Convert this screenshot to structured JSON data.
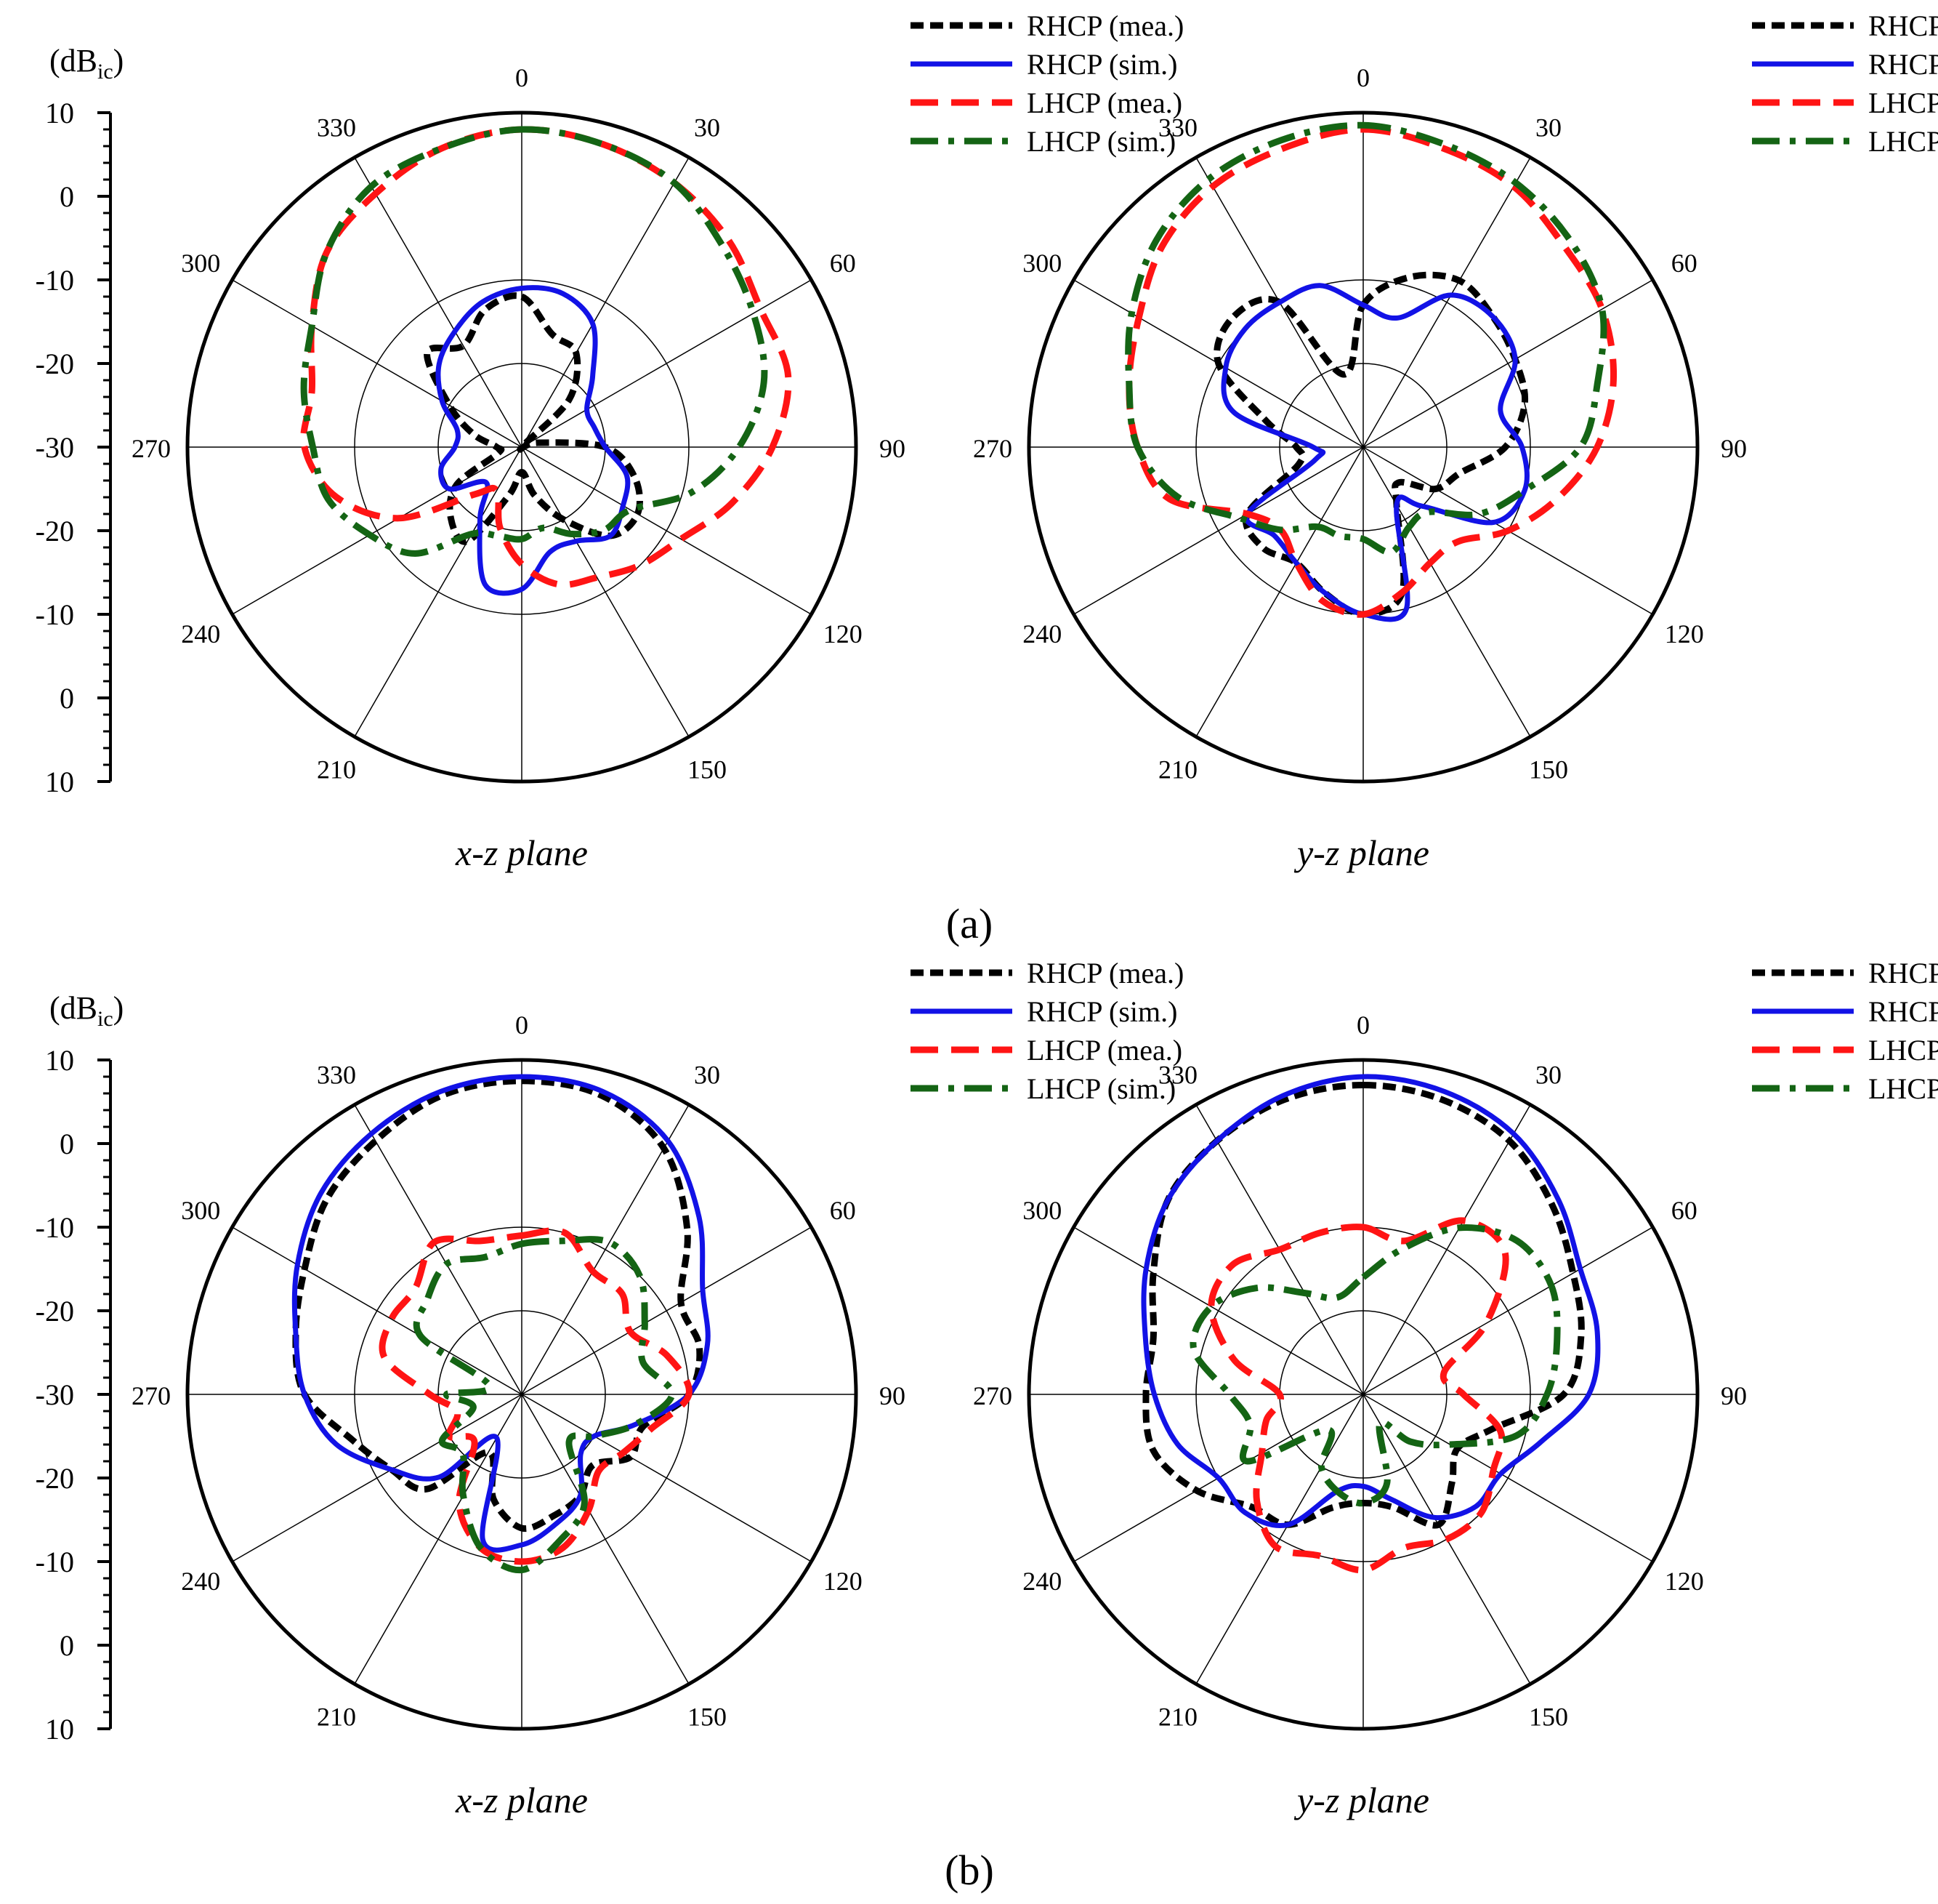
{
  "figure": {
    "subplot_labels": [
      "(a)",
      "(b)"
    ]
  },
  "chart_data": [
    {
      "type": "polar-line",
      "panel": "(a)",
      "title": "x-z plane",
      "unit_label": "(dB",
      "unit_sub": "ic",
      "unit_close": ")",
      "angle_labels": [
        "0",
        "30",
        "60",
        "90",
        "120",
        "150",
        "210",
        "240",
        "270",
        "300",
        "330"
      ],
      "radial_ticks": [
        "10",
        "0",
        "-10",
        "-20",
        "-30",
        "-20",
        "-10",
        "0",
        "10"
      ],
      "rlim": [
        -30,
        10
      ],
      "legend": [
        "RHCP (mea.)",
        "RHCP (sim.)",
        "LHCP (mea.)",
        "LHCP (sim.)"
      ],
      "angles": [
        0,
        15,
        30,
        45,
        60,
        75,
        90,
        105,
        120,
        135,
        150,
        165,
        180,
        195,
        210,
        225,
        240,
        255,
        270,
        285,
        300,
        315,
        330,
        345
      ],
      "series": [
        {
          "name": "RHCP (mea.)",
          "values": [
            -12,
            -16,
            -17,
            -22,
            -30,
            -28,
            -20,
            -16,
            -14,
            -15,
            -20,
            -24,
            -27,
            -24,
            -17,
            -18,
            -21,
            -27,
            -27,
            -24,
            -20,
            -14,
            -16,
            -13
          ]
        },
        {
          "name": "RHCP (sim.)",
          "values": [
            -11,
            -11,
            -13,
            -18,
            -21,
            -21,
            -20,
            -17,
            -16,
            -15,
            -17,
            -17,
            -13,
            -13,
            -20,
            -24,
            -20,
            -20,
            -22,
            -22,
            -19,
            -16,
            -14,
            -12
          ]
        },
        {
          "name": "LHCP (mea.)",
          "values": [
            8,
            7.5,
            6.5,
            5,
            3,
            3,
            0,
            -4,
            -8,
            -10,
            -12,
            -13,
            -16,
            -20,
            -24,
            -22,
            -13,
            -7,
            -4,
            -4,
            -1,
            3,
            5,
            7
          ]
        },
        {
          "name": "LHCP (sim.)",
          "values": [
            8,
            7.5,
            6.5,
            4,
            2,
            0,
            -4,
            -9,
            -15,
            -16,
            -18,
            -20,
            -19,
            -19,
            -18,
            -12,
            -9,
            -6,
            -5,
            -3,
            -1,
            3,
            6,
            7
          ]
        }
      ]
    },
    {
      "type": "polar-line",
      "panel": "(a)",
      "title": "y-z plane",
      "angle_labels": [
        "0",
        "30",
        "60",
        "90",
        "120",
        "150",
        "210",
        "240",
        "270",
        "300",
        "330"
      ],
      "rlim": [
        -30,
        10
      ],
      "legend": [
        "RHCP (mea.)",
        "RHCP (sim.)",
        "LHCP (mea.)",
        "LHCP (sim.)"
      ],
      "angles": [
        0,
        15,
        30,
        45,
        60,
        75,
        90,
        105,
        120,
        135,
        150,
        165,
        180,
        195,
        210,
        225,
        240,
        255,
        270,
        285,
        300,
        315,
        330,
        345
      ],
      "series": [
        {
          "name": "RHCP (mea.)",
          "values": [
            -13,
            -9,
            -7,
            -8,
            -9,
            -10,
            -13,
            -18,
            -20,
            -24,
            -22,
            -12,
            -10,
            -12,
            -14,
            -13,
            -14,
            -22,
            -22,
            -18,
            -10,
            -8,
            -10,
            -21
          ]
        },
        {
          "name": "RHCP (sim.)",
          "values": [
            -13,
            -14,
            -9,
            -8,
            -9,
            -13,
            -11,
            -10,
            -12,
            -20,
            -22,
            -10,
            -10,
            -12,
            -14,
            -15,
            -14,
            -24,
            -24,
            -14,
            -11,
            -10,
            -10,
            -10
          ]
        },
        {
          "name": "LHCP (mea.)",
          "values": [
            8,
            7,
            6,
            4,
            3,
            1,
            -2,
            -6,
            -10,
            -14,
            -14,
            -12,
            -10,
            -11,
            -14,
            -16,
            -14,
            -6,
            -3,
            -1,
            1,
            4,
            6,
            7
          ]
        },
        {
          "name": "LHCP (sim.)",
          "values": [
            8.5,
            7.5,
            6.5,
            5,
            3,
            -1,
            -4,
            -10,
            -14,
            -19,
            -19,
            -17,
            -19,
            -19,
            -19,
            -16,
            -13,
            -7,
            -3,
            -1,
            2,
            5,
            7,
            8
          ]
        }
      ]
    },
    {
      "type": "polar-line",
      "panel": "(b)",
      "title": "x-z plane",
      "unit_label": "(dB",
      "unit_sub": "ic",
      "unit_close": ")",
      "angle_labels": [
        "0",
        "30",
        "60",
        "90",
        "120",
        "150",
        "210",
        "240",
        "270",
        "300",
        "330"
      ],
      "radial_ticks": [
        "10",
        "0",
        "-10",
        "-20",
        "-30",
        "-20",
        "-10",
        "0",
        "10"
      ],
      "rlim": [
        -30,
        10
      ],
      "legend": [
        "RHCP (mea.)",
        "RHCP (sim.)",
        "LHCP (mea.)",
        "LHCP (sim.)"
      ],
      "angles": [
        0,
        15,
        30,
        45,
        60,
        75,
        90,
        105,
        120,
        135,
        150,
        165,
        180,
        195,
        210,
        225,
        240,
        255,
        270,
        285,
        300,
        315,
        330,
        345
      ],
      "series": [
        {
          "name": "RHCP (mea.)",
          "values": [
            7.5,
            7,
            4,
            -2,
            -8,
            -8,
            -10,
            -15,
            -15,
            -18,
            -16,
            -15,
            -14,
            -17,
            -22,
            -14,
            -12,
            -9,
            -4,
            -2,
            0,
            3,
            5,
            7
          ]
        },
        {
          "name": "RHCP (sim.)",
          "values": [
            8,
            7.5,
            5,
            0,
            -5,
            -7,
            -10,
            -16,
            -20,
            -20,
            -16,
            -14,
            -12,
            -12,
            -24,
            -16,
            -12,
            -7,
            -4,
            -2,
            1,
            4,
            6,
            7.5
          ]
        },
        {
          "name": "LHCP (mea.)",
          "values": [
            -11,
            -10,
            -13,
            -13,
            -15,
            -12,
            -10,
            -14,
            -16,
            -17,
            -14,
            -11,
            -10,
            -11,
            -15,
            -22,
            -20,
            -22,
            -19,
            -13,
            -12,
            -12,
            -9,
            -11
          ]
        },
        {
          "name": "LHCP (sim.)",
          "values": [
            -12,
            -11,
            -9,
            -10,
            -13,
            -15,
            -12,
            -16,
            -20,
            -22,
            -15,
            -12,
            -9,
            -11,
            -16,
            -20,
            -19,
            -24,
            -21,
            -26,
            -16,
            -14,
            -12,
            -13
          ]
        }
      ]
    },
    {
      "type": "polar-line",
      "panel": "(b)",
      "title": "y-z plane",
      "angle_labels": [
        "0",
        "30",
        "60",
        "90",
        "120",
        "150",
        "210",
        "240",
        "270",
        "300",
        "330"
      ],
      "rlim": [
        -30,
        10
      ],
      "legend": [
        "RHCP (mea.)",
        "RHCP (sim.)",
        "LHCP (mea.)",
        "LHCP (sim.)"
      ],
      "angles": [
        0,
        15,
        30,
        45,
        60,
        75,
        90,
        105,
        120,
        135,
        150,
        165,
        180,
        195,
        210,
        225,
        240,
        255,
        270,
        285,
        300,
        315,
        330,
        345
      ],
      "series": [
        {
          "name": "RHCP (mea.)",
          "values": [
            7,
            6.5,
            5,
            2,
            -1,
            -3,
            -6,
            -14,
            -17,
            -15,
            -12,
            -16,
            -17,
            -16,
            -12,
            -11,
            -7,
            -4,
            -4,
            -4,
            -1,
            3,
            5,
            6.5
          ]
        },
        {
          "name": "RHCP (sim.)",
          "values": [
            8,
            7.5,
            6,
            3,
            0,
            -1,
            -3,
            -8,
            -11,
            -11,
            -13,
            -17,
            -19,
            -18,
            -12,
            -10,
            -10,
            -7,
            -5,
            -3,
            0,
            3,
            5,
            7
          ]
        },
        {
          "name": "LHCP (mea.)",
          "values": [
            -10,
            -11,
            -6,
            -6,
            -13,
            -20,
            -18,
            -13,
            -12,
            -10,
            -10,
            -11,
            -9,
            -10,
            -9,
            -12,
            -16,
            -18,
            -20,
            -14,
            -9,
            -8,
            -10,
            -10
          ]
        },
        {
          "name": "LHCP (sim.)",
          "values": [
            -16,
            -12,
            -7,
            -4,
            -4,
            -6,
            -8,
            -11,
            -18,
            -22,
            -26,
            -19,
            -17,
            -18,
            -20,
            -24,
            -14,
            -16,
            -14,
            -9,
            -9,
            -12,
            -16,
            -18
          ]
        }
      ]
    }
  ],
  "colors": {
    "RHCP_mea": "#000000",
    "RHCP_sim": "#1212e6",
    "LHCP_mea": "#ff1414",
    "LHCP_sim": "#146414"
  }
}
